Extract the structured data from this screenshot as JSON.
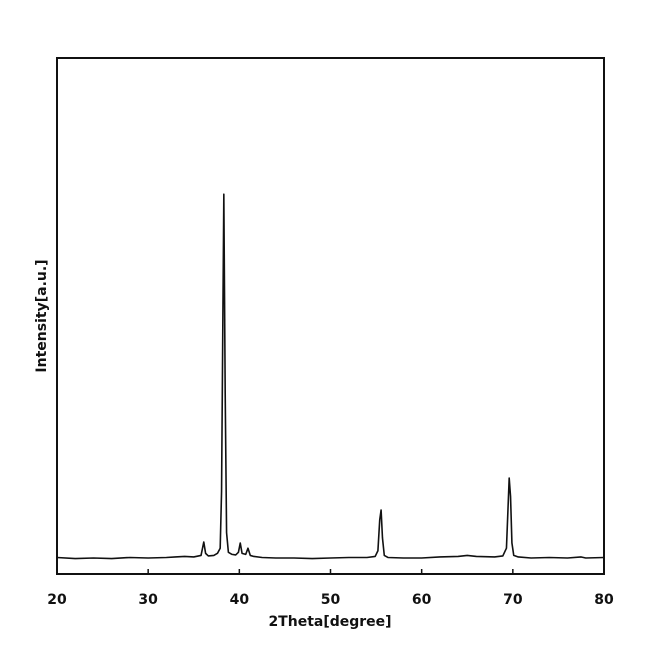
{
  "chart_data": {
    "type": "line",
    "x_label": "2Theta[degree]",
    "y_label": "Intensity[a.u.]",
    "xlim": [
      20,
      80
    ],
    "xticks": [
      20,
      30,
      40,
      50,
      60,
      70,
      80
    ],
    "ylim": [
      0,
      100
    ],
    "series": [
      {
        "color": "#111111",
        "x": [
          20,
          22,
          24,
          26,
          28,
          30,
          32,
          33,
          34,
          35,
          35.8,
          36.1,
          36.3,
          36.6,
          37.2,
          37.6,
          37.9,
          38.05,
          38.2,
          38.3,
          38.45,
          38.6,
          38.8,
          39.2,
          39.6,
          39.9,
          40.1,
          40.3,
          40.7,
          40.95,
          41.2,
          41.6,
          42.5,
          44,
          46,
          48,
          50,
          52,
          54,
          54.9,
          55.2,
          55.4,
          55.55,
          55.7,
          55.9,
          56.3,
          58,
          60,
          62,
          64,
          65,
          66,
          68,
          68.9,
          69.3,
          69.5,
          69.6,
          69.75,
          69.9,
          70.1,
          70.6,
          72,
          74,
          76,
          77.5,
          78,
          80
        ],
        "values": [
          3.2,
          3.0,
          3.1,
          3.0,
          3.2,
          3.1,
          3.2,
          3.3,
          3.4,
          3.3,
          3.6,
          6.2,
          4.0,
          3.5,
          3.6,
          4.0,
          5.0,
          16.0,
          51.0,
          73.6,
          35.0,
          8.0,
          4.2,
          3.8,
          3.7,
          4.2,
          6.0,
          4.0,
          3.8,
          5.0,
          3.6,
          3.4,
          3.2,
          3.1,
          3.1,
          3.0,
          3.1,
          3.2,
          3.2,
          3.4,
          4.5,
          10.5,
          12.4,
          7.0,
          3.6,
          3.2,
          3.1,
          3.1,
          3.3,
          3.4,
          3.6,
          3.4,
          3.3,
          3.5,
          5.0,
          14.0,
          18.6,
          15.0,
          6.0,
          3.6,
          3.3,
          3.1,
          3.2,
          3.1,
          3.3,
          3.1,
          3.2
        ]
      }
    ]
  }
}
